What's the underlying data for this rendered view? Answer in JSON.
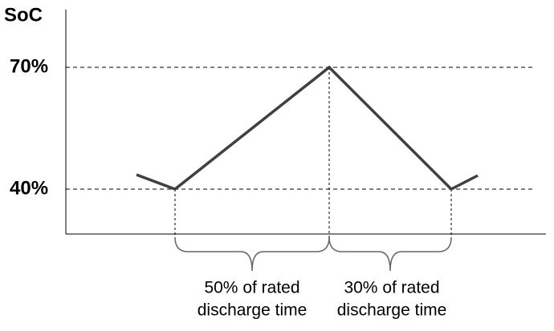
{
  "axis": {
    "y_title": "SoC",
    "upper_label": "70%",
    "lower_label": "40%"
  },
  "intervals": [
    {
      "label_lines": [
        "50% of rated",
        "discharge time"
      ]
    },
    {
      "label_lines": [
        "30% of rated",
        "discharge time"
      ]
    }
  ]
}
